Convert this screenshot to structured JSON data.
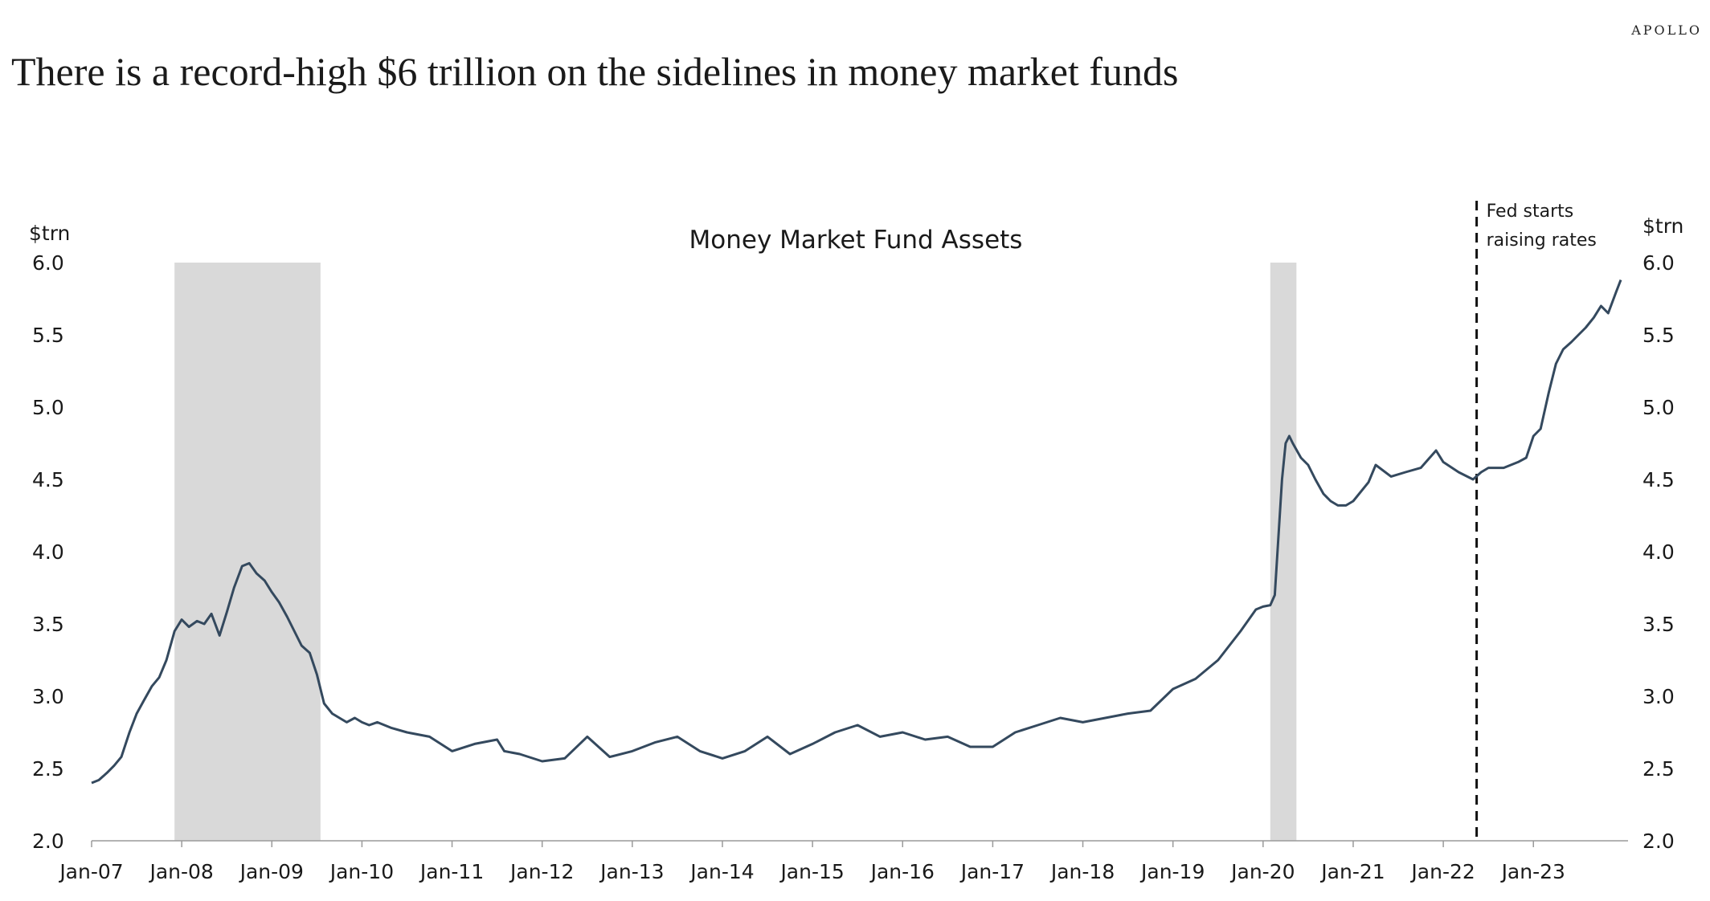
{
  "brand": "APOLLO",
  "headline": "There is a record-high $6 trillion on the sidelines in money market funds",
  "chart_data": {
    "type": "line",
    "title": "Money Market Fund Assets",
    "ylabel_left": "$trn",
    "ylabel_right": "$trn",
    "ylim": [
      2.0,
      6.0
    ],
    "yticks": [
      "2.0",
      "2.5",
      "3.0",
      "3.5",
      "4.0",
      "4.5",
      "5.0",
      "5.5",
      "6.0"
    ],
    "xlim": [
      2007.0,
      2024.05
    ],
    "xticks": [
      "Jan-07",
      "Jan-08",
      "Jan-09",
      "Jan-10",
      "Jan-11",
      "Jan-12",
      "Jan-13",
      "Jan-14",
      "Jan-15",
      "Jan-16",
      "Jan-17",
      "Jan-18",
      "Jan-19",
      "Jan-20",
      "Jan-21",
      "Jan-22",
      "Jan-23"
    ],
    "recessions": [
      [
        2007.92,
        2009.54
      ],
      [
        2020.08,
        2020.37
      ]
    ],
    "event_line": {
      "x": 2022.37,
      "label_lines": [
        "Fed starts",
        "raising rates"
      ]
    },
    "grid": false,
    "legend": "none",
    "line_color": "#34495e",
    "recession_color": "#d9d9d9",
    "series": [
      {
        "x": [
          2007.0,
          2007.08,
          2007.17,
          2007.25,
          2007.33,
          2007.42,
          2007.5,
          2007.58,
          2007.67,
          2007.75,
          2007.83,
          2007.92,
          2008.0,
          2008.08,
          2008.17,
          2008.25,
          2008.33,
          2008.42,
          2008.5,
          2008.58,
          2008.67,
          2008.75,
          2008.83,
          2008.92,
          2009.0,
          2009.08,
          2009.17,
          2009.25,
          2009.33,
          2009.42,
          2009.5,
          2009.58,
          2009.67,
          2009.75,
          2009.83,
          2009.92,
          2010.0,
          2010.08,
          2010.17,
          2010.25,
          2010.33,
          2010.5,
          2010.75,
          2011.0,
          2011.25,
          2011.5,
          2011.58,
          2011.75,
          2012.0,
          2012.25,
          2012.5,
          2012.75,
          2013.0,
          2013.25,
          2013.5,
          2013.75,
          2014.0,
          2014.25,
          2014.5,
          2014.75,
          2015.0,
          2015.25,
          2015.5,
          2015.75,
          2016.0,
          2016.25,
          2016.5,
          2016.75,
          2017.0,
          2017.25,
          2017.5,
          2017.75,
          2018.0,
          2018.25,
          2018.5,
          2018.75,
          2019.0,
          2019.25,
          2019.5,
          2019.75,
          2019.92,
          2020.0,
          2020.08,
          2020.13,
          2020.17,
          2020.21,
          2020.25,
          2020.29,
          2020.33,
          2020.42,
          2020.5,
          2020.58,
          2020.67,
          2020.75,
          2020.83,
          2020.92,
          2021.0,
          2021.17,
          2021.25,
          2021.42,
          2021.58,
          2021.75,
          2021.92,
          2022.0,
          2022.17,
          2022.33,
          2022.42,
          2022.5,
          2022.67,
          2022.83,
          2022.92,
          2023.0,
          2023.08,
          2023.17,
          2023.25,
          2023.33,
          2023.42,
          2023.5,
          2023.58,
          2023.67,
          2023.75,
          2023.83,
          2023.92,
          2023.97
        ],
        "values": [
          2.4,
          2.42,
          2.47,
          2.52,
          2.58,
          2.75,
          2.88,
          2.97,
          3.07,
          3.13,
          3.25,
          3.45,
          3.53,
          3.48,
          3.52,
          3.5,
          3.57,
          3.42,
          3.58,
          3.75,
          3.9,
          3.92,
          3.85,
          3.8,
          3.72,
          3.65,
          3.55,
          3.45,
          3.35,
          3.3,
          3.15,
          2.95,
          2.88,
          2.85,
          2.82,
          2.85,
          2.82,
          2.8,
          2.82,
          2.8,
          2.78,
          2.75,
          2.72,
          2.62,
          2.67,
          2.7,
          2.62,
          2.6,
          2.55,
          2.57,
          2.72,
          2.58,
          2.62,
          2.68,
          2.72,
          2.62,
          2.57,
          2.62,
          2.72,
          2.6,
          2.67,
          2.75,
          2.8,
          2.72,
          2.75,
          2.7,
          2.72,
          2.65,
          2.65,
          2.75,
          2.8,
          2.85,
          2.82,
          2.85,
          2.88,
          2.9,
          3.05,
          3.12,
          3.25,
          3.45,
          3.6,
          3.62,
          3.63,
          3.7,
          4.1,
          4.5,
          4.75,
          4.8,
          4.75,
          4.65,
          4.6,
          4.5,
          4.4,
          4.35,
          4.32,
          4.32,
          4.35,
          4.48,
          4.6,
          4.52,
          4.55,
          4.58,
          4.7,
          4.62,
          4.55,
          4.5,
          4.55,
          4.58,
          4.58,
          4.62,
          4.65,
          4.8,
          4.85,
          5.1,
          5.3,
          5.4,
          5.45,
          5.5,
          5.55,
          5.62,
          5.7,
          5.65,
          5.8,
          5.88
        ]
      }
    ]
  }
}
